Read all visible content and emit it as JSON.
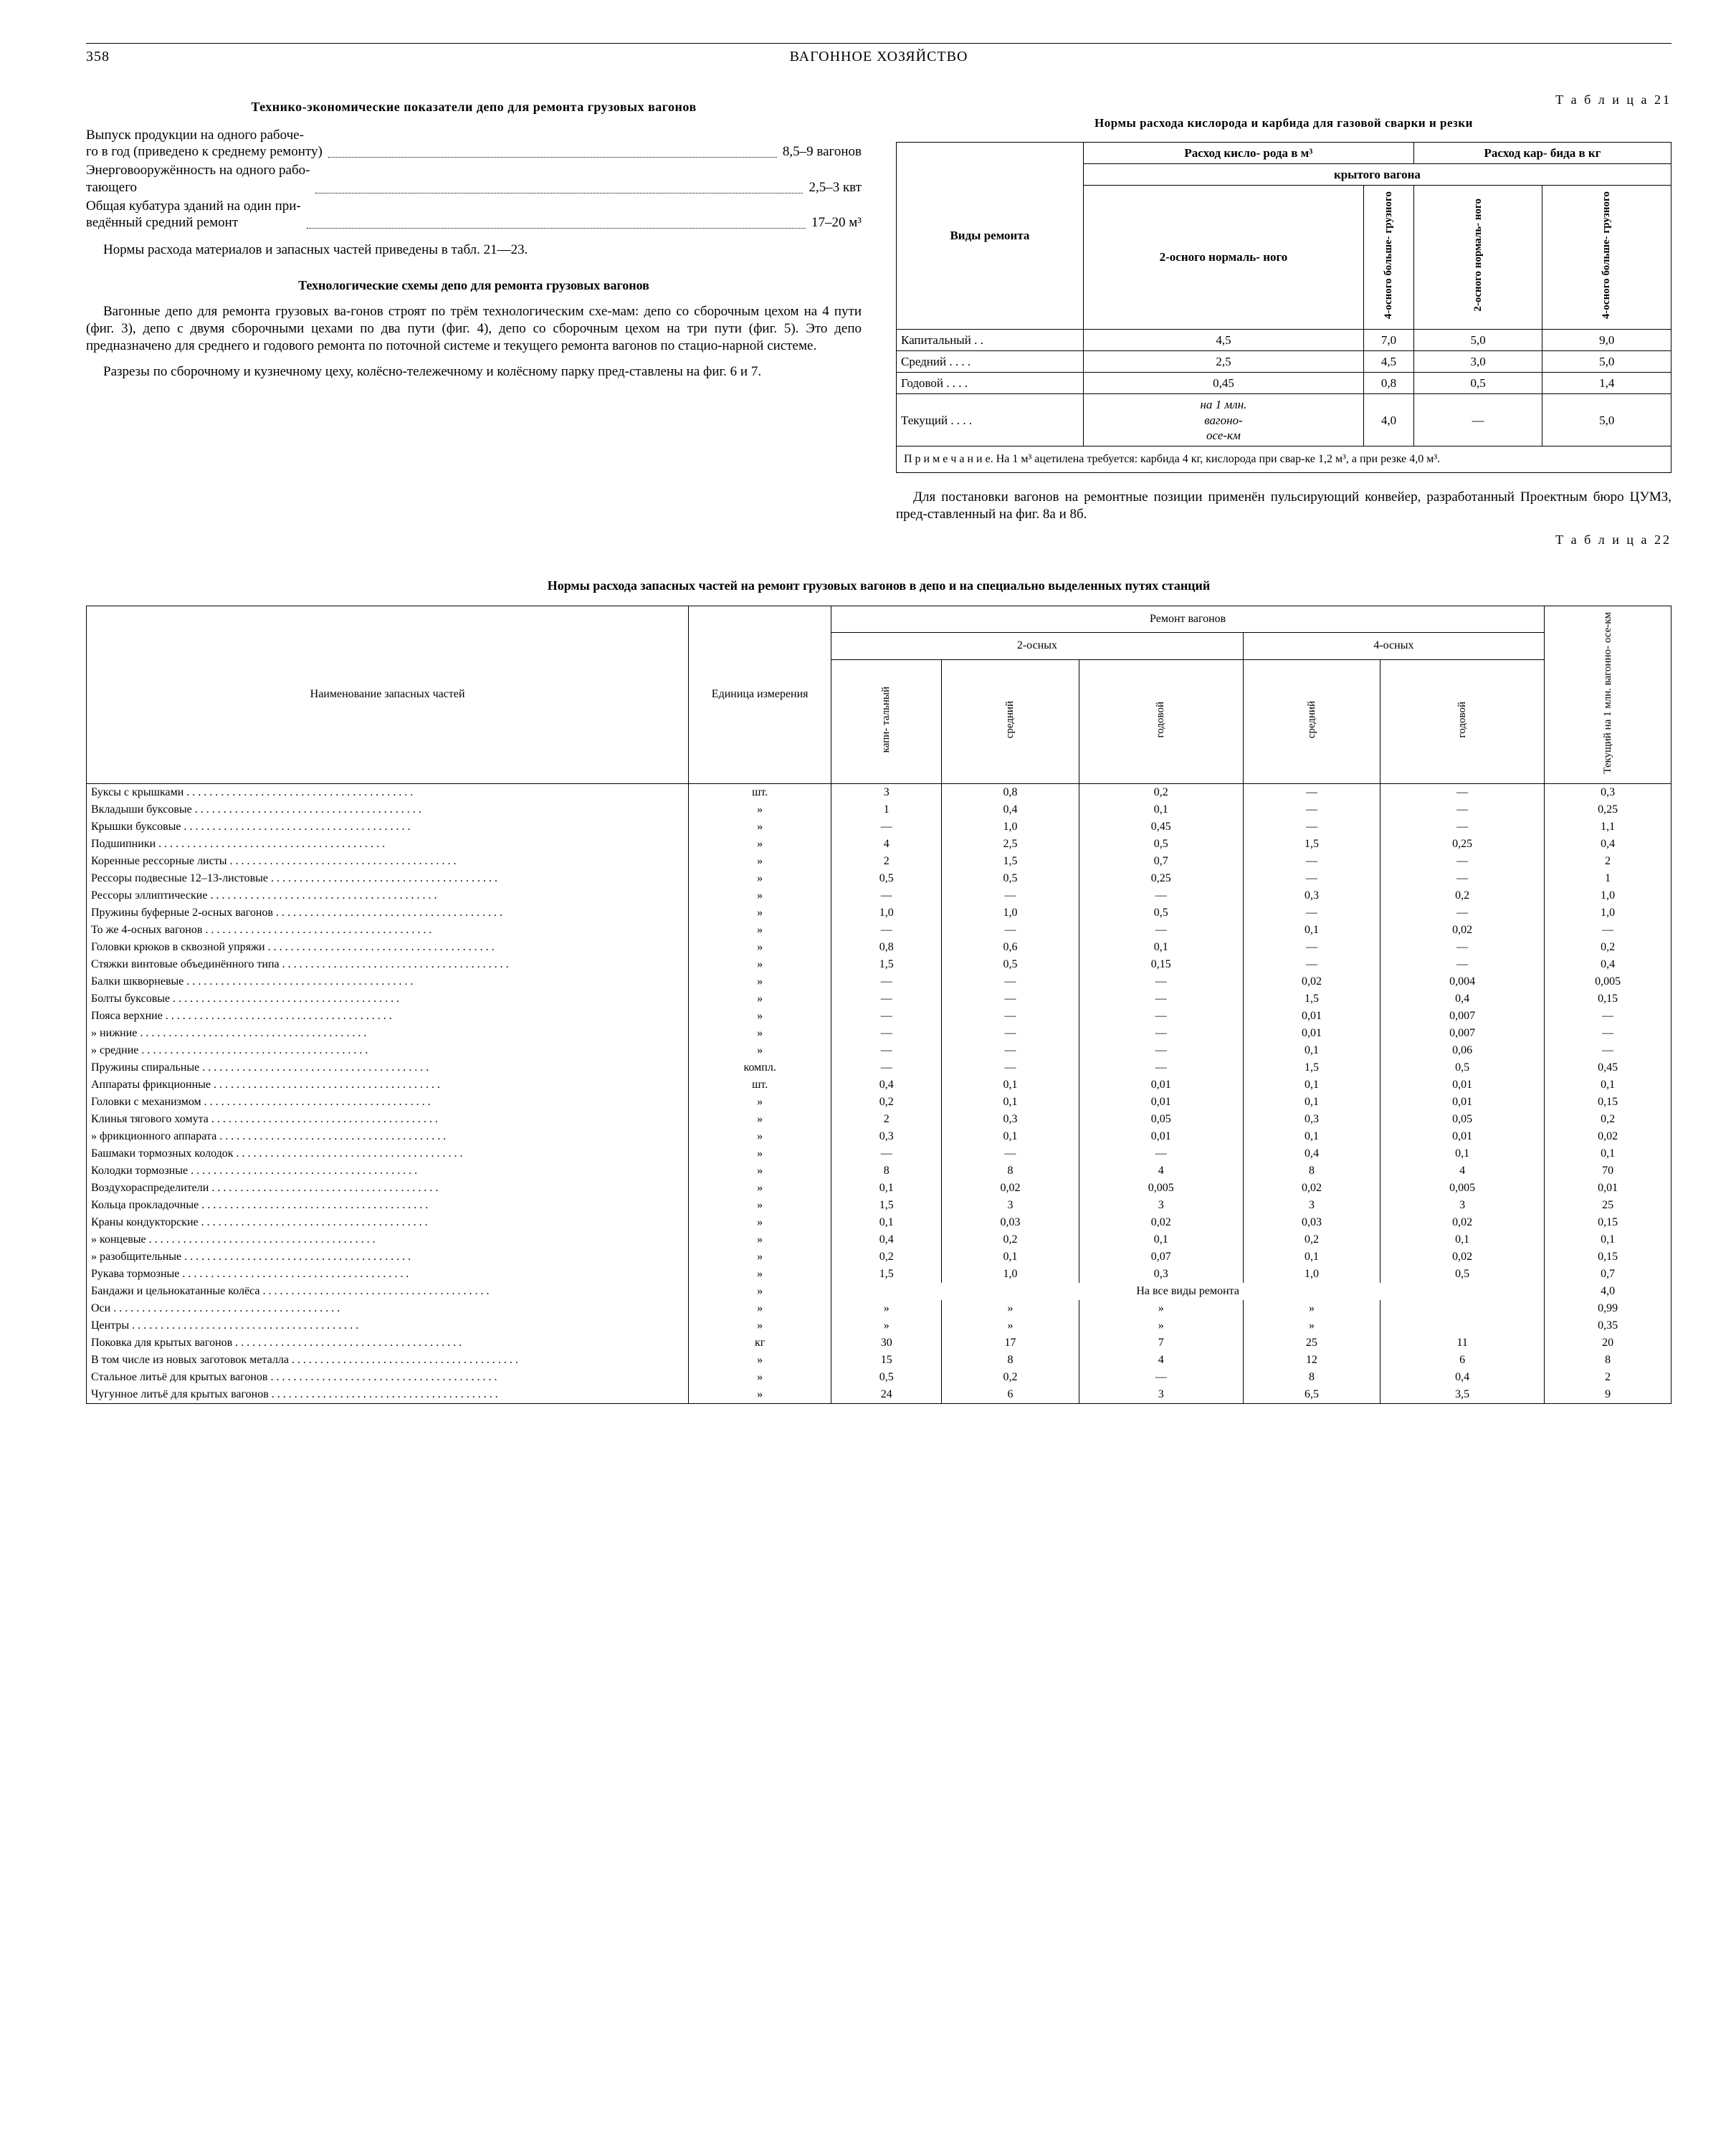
{
  "header": {
    "page_no": "358",
    "running": "ВАГОННОЕ ХОЗЯЙСТВО"
  },
  "left": {
    "title1": "Технико-экономические показатели депо для ремонта грузовых вагонов",
    "stats": [
      {
        "label": "Выпуск продукции на одного рабоче-\nго в год (приведено к среднему ремонту)",
        "value": "8,5–9 вагонов"
      },
      {
        "label": "Энерговооружённость на одного рабо-\nтающего",
        "value": "2,5–3 квт"
      },
      {
        "label": "Общая кубатура зданий на один при-\nведённый средний ремонт",
        "value": "17–20 м³"
      }
    ],
    "para1": "Нормы расхода материалов и запасных частей приведены в табл. 21—23.",
    "title2": "Технологические схемы депо для ремонта грузовых вагонов",
    "para2": "Вагонные депо для ремонта грузовых ва-гонов строят по трём технологическим схе-мам: депо со сборочным цехом на 4 пути (фиг. 3), депо с двумя сборочными цехами по два пути (фиг. 4), депо со сборочным цехом на три пути (фиг. 5). Это депо предназначено для среднего и годового ремонта по поточной системе и текущего ремонта вагонов по стацио-нарной системе.",
    "para3": "Разрезы по сборочному и кузнечному цеху, колёсно-тележечному и колёсному парку пред-ставлены на фиг. 6 и 7."
  },
  "right": {
    "tbl_num": "Т а б л и ц а  21",
    "t21_caption": "Нормы расхода кислорода и карбида для газовой сварки и резки",
    "t21_head": {
      "col0": "Виды ремонта",
      "grp1": "Расход кисло-\nрода в м³",
      "grp2": "Расход кар-\nбида в кг",
      "span": "крытого вагона",
      "sub1": "2-осного нормаль-\nного",
      "sub2": "4-осного больше-\nгрузного",
      "sub3": "2-осного нормаль-\nного",
      "sub4": "4-осного больше-\nгрузного"
    },
    "t21_rows": [
      {
        "n": "Капитальный . .",
        "a": "4,5",
        "b": "7,0",
        "c": "5,0",
        "d": "9,0"
      },
      {
        "n": "Средний . . . .",
        "a": "2,5",
        "b": "4,5",
        "c": "3,0",
        "d": "5,0"
      },
      {
        "n": "Годовой . . . .",
        "a": "0,45",
        "b": "0,8",
        "c": "0,5",
        "d": "1,4"
      },
      {
        "n": "Текущий . . . .",
        "a": "на 1 млн.\nвагоно-\nосе-км",
        "b": "4,0",
        "c": "—",
        "d": "5,0"
      }
    ],
    "t21_note": "П р и м е ч а н и е.  На 1 м³ ацетилена требуется: карбида 4 кг, кислорода при свар-ке 1,2 м³, а при резке 4,0 м³.",
    "para": "Для постановки вагонов на ремонтные позиции применён пульсирующий конвейер, разработанный Проектным бюро ЦУМЗ, пред-ставленный на фиг. 8а и 8б.",
    "tbl_num2": "Т а б л и ц а  22"
  },
  "t22": {
    "caption": "Нормы расхода запасных частей на ремонт грузовых вагонов в депо и на специально выделенных путях станций",
    "head": {
      "name": "Наименование запасных частей",
      "unit": "Единица измерения",
      "repair": "Ремонт вагонов",
      "g2": "2-осных",
      "g4": "4-осных",
      "c1": "капи-\nтальный",
      "c2": "средний",
      "c3": "годовой",
      "c4": "средний",
      "c5": "годовой",
      "last": "Текущий на\n1 млн. вагонно-\nосе-км"
    },
    "rows": [
      {
        "n": "Буксы с крышками",
        "u": "шт.",
        "a": "3",
        "b": "0,8",
        "c": "0,2",
        "d": "—",
        "e": "—",
        "f": "0,3"
      },
      {
        "n": "Вкладыши буксовые",
        "u": "»",
        "a": "1",
        "b": "0,4",
        "c": "0,1",
        "d": "—",
        "e": "—",
        "f": "0,25"
      },
      {
        "n": "Крышки буксовые",
        "u": "»",
        "a": "—",
        "b": "1,0",
        "c": "0,45",
        "d": "—",
        "e": "—",
        "f": "1,1"
      },
      {
        "n": "Подшипники",
        "u": "»",
        "a": "4",
        "b": "2,5",
        "c": "0,5",
        "d": "1,5",
        "e": "0,25",
        "f": "0,4"
      },
      {
        "n": "Коренные рессорные листы",
        "u": "»",
        "a": "2",
        "b": "1,5",
        "c": "0,7",
        "d": "—",
        "e": "—",
        "f": "2"
      },
      {
        "n": "Рессоры подвесные 12–13-листовые",
        "u": "»",
        "a": "0,5",
        "b": "0,5",
        "c": "0,25",
        "d": "—",
        "e": "—",
        "f": "1"
      },
      {
        "n": "Рессоры эллиптические",
        "u": "»",
        "a": "—",
        "b": "—",
        "c": "—",
        "d": "0,3",
        "e": "0,2",
        "f": "1,0"
      },
      {
        "n": "Пружины буферные 2-осных вагонов",
        "u": "»",
        "a": "1,0",
        "b": "1,0",
        "c": "0,5",
        "d": "—",
        "e": "—",
        "f": "1,0"
      },
      {
        "n": "То же 4-осных вагонов",
        "u": "»",
        "a": "—",
        "b": "—",
        "c": "—",
        "d": "0,1",
        "e": "0,02",
        "f": "—"
      },
      {
        "n": "Головки крюков в сквозной упряжи",
        "u": "»",
        "a": "0,8",
        "b": "0,6",
        "c": "0,1",
        "d": "—",
        "e": "—",
        "f": "0,2"
      },
      {
        "n": "Стяжки винтовые объединённого типа",
        "u": "»",
        "a": "1,5",
        "b": "0,5",
        "c": "0,15",
        "d": "—",
        "e": "—",
        "f": "0,4"
      },
      {
        "n": "Балки шкворневые",
        "u": "»",
        "a": "—",
        "b": "—",
        "c": "—",
        "d": "0,02",
        "e": "0,004",
        "f": "0,005"
      },
      {
        "n": "Болты буксовые",
        "u": "»",
        "a": "—",
        "b": "—",
        "c": "—",
        "d": "1,5",
        "e": "0,4",
        "f": "0,15"
      },
      {
        "n": "Пояса верхние",
        "u": "»",
        "a": "—",
        "b": "—",
        "c": "—",
        "d": "0,01",
        "e": "0,007",
        "f": "—"
      },
      {
        "n": "     »        нижние",
        "u": "»",
        "a": "—",
        "b": "—",
        "c": "—",
        "d": "0,01",
        "e": "0,007",
        "f": "—"
      },
      {
        "n": "     »        средние",
        "u": "»",
        "a": "—",
        "b": "—",
        "c": "—",
        "d": "0,1",
        "e": "0,06",
        "f": "—"
      },
      {
        "n": "Пружины спиральные",
        "u": "компл.",
        "a": "—",
        "b": "—",
        "c": "—",
        "d": "1,5",
        "e": "0,5",
        "f": "0,45"
      },
      {
        "n": "Аппараты фрикционные",
        "u": "шт.",
        "a": "0,4",
        "b": "0,1",
        "c": "0,01",
        "d": "0,1",
        "e": "0,01",
        "f": "0,1"
      },
      {
        "n": "Головки с механизмом",
        "u": "»",
        "a": "0,2",
        "b": "0,1",
        "c": "0,01",
        "d": "0,1",
        "e": "0,01",
        "f": "0,15"
      },
      {
        "n": "Клинья тягового хомута",
        "u": "»",
        "a": "2",
        "b": "0,3",
        "c": "0,05",
        "d": "0,3",
        "e": "0,05",
        "f": "0,2"
      },
      {
        "n": "     »     фрикционного аппарата",
        "u": "»",
        "a": "0,3",
        "b": "0,1",
        "c": "0,01",
        "d": "0,1",
        "e": "0,01",
        "f": "0,02"
      },
      {
        "n": "Башмаки тормозных колодок",
        "u": "»",
        "a": "—",
        "b": "—",
        "c": "—",
        "d": "0,4",
        "e": "0,1",
        "f": "0,1"
      },
      {
        "n": "Колодки тормозные",
        "u": "»",
        "a": "8",
        "b": "8",
        "c": "4",
        "d": "8",
        "e": "4",
        "f": "70"
      },
      {
        "n": "Воздухораспределители",
        "u": "»",
        "a": "0,1",
        "b": "0,02",
        "c": "0,005",
        "d": "0,02",
        "e": "0,005",
        "f": "0,01"
      },
      {
        "n": "Кольца прокладочные",
        "u": "»",
        "a": "1,5",
        "b": "3",
        "c": "3",
        "d": "3",
        "e": "3",
        "f": "25"
      },
      {
        "n": "Краны кондукторские",
        "u": "»",
        "a": "0,1",
        "b": "0,03",
        "c": "0,02",
        "d": "0,03",
        "e": "0,02",
        "f": "0,15"
      },
      {
        "n": "     »     концевые",
        "u": "»",
        "a": "0,4",
        "b": "0,2",
        "c": "0,1",
        "d": "0,2",
        "e": "0,1",
        "f": "0,1"
      },
      {
        "n": "     »     разобщительные",
        "u": "»",
        "a": "0,2",
        "b": "0,1",
        "c": "0,07",
        "d": "0,1",
        "e": "0,02",
        "f": "0,15"
      },
      {
        "n": "Рукава тормозные",
        "u": "»",
        "a": "1,5",
        "b": "1,0",
        "c": "0,3",
        "d": "1,0",
        "e": "0,5",
        "f": "0,7"
      },
      {
        "n": "Бандажи и цельнокатанные колёса",
        "u": "»",
        "merged": "На все виды ремонта",
        "f": "4,0"
      },
      {
        "n": "Оси",
        "u": "»",
        "a": "»",
        "b": "»",
        "c": "»",
        "d": "»",
        "e": "",
        "f": "0,99"
      },
      {
        "n": "Центры",
        "u": "»",
        "a": "»",
        "b": "»",
        "c": "»",
        "d": "»",
        "e": "",
        "f": "0,35"
      },
      {
        "n": "Поковка для крытых вагонов",
        "u": "кг",
        "a": "30",
        "b": "17",
        "c": "7",
        "d": "25",
        "e": "11",
        "f": "20"
      },
      {
        "n": "В том числе из новых заготовок металла",
        "u": "»",
        "a": "15",
        "b": "8",
        "c": "4",
        "d": "12",
        "e": "6",
        "f": "8"
      },
      {
        "n": "Стальное литьё для крытых вагонов",
        "u": "»",
        "a": "0,5",
        "b": "0,2",
        "c": "—",
        "d": "8",
        "e": "0,4",
        "f": "2"
      },
      {
        "n": "Чугунное литьё для крытых вагонов",
        "u": "»",
        "a": "24",
        "b": "6",
        "c": "3",
        "d": "6,5",
        "e": "3,5",
        "f": "9"
      }
    ]
  }
}
